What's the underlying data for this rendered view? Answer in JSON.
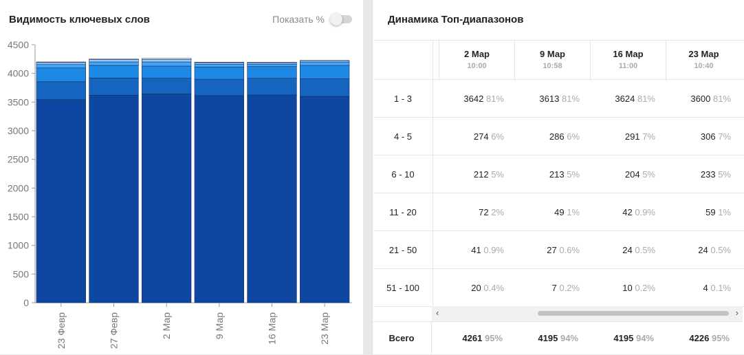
{
  "left": {
    "title": "Видимость ключевых слов",
    "toggle_label": "Показать %"
  },
  "chart_data": {
    "type": "bar",
    "stacked": true,
    "title": "Видимость ключевых слов",
    "categories": [
      "23 Февр",
      "27 Февр",
      "2 Мар",
      "9 Мар",
      "16 Мар",
      "23 Мар"
    ],
    "ylim": [
      0,
      4500
    ],
    "yticks": [
      0,
      500,
      1000,
      1500,
      2000,
      2500,
      3000,
      3500,
      4000,
      4500
    ],
    "grid": false,
    "series": [
      {
        "color": "#0d47a1",
        "values": [
          3545,
          3620,
          3642,
          3613,
          3624,
          3600
        ]
      },
      {
        "color": "#1565c0",
        "values": [
          310,
          300,
          274,
          286,
          291,
          306
        ]
      },
      {
        "color": "#1e88e5",
        "values": [
          240,
          220,
          212,
          213,
          204,
          233
        ]
      },
      {
        "color": "#42a5f5",
        "values": [
          60,
          60,
          72,
          49,
          42,
          59
        ]
      },
      {
        "color": "#90caf9",
        "values": [
          35,
          40,
          41,
          27,
          24,
          24
        ]
      },
      {
        "color": "#e3f2fd",
        "values": [
          10,
          10,
          20,
          7,
          10,
          4
        ]
      }
    ]
  },
  "right": {
    "title": "Динамика Топ-диапазонов",
    "columns": [
      {
        "date": "2 Мар",
        "time": "10:00"
      },
      {
        "date": "9 Мар",
        "time": "10:58"
      },
      {
        "date": "16 Мар",
        "time": "11:00"
      },
      {
        "date": "23 Мар",
        "time": "10:40"
      }
    ],
    "rows": [
      {
        "label": "1 - 3",
        "cells": [
          {
            "v": "3642",
            "p": "81%"
          },
          {
            "v": "3613",
            "p": "81%"
          },
          {
            "v": "3624",
            "p": "81%"
          },
          {
            "v": "3600",
            "p": "81%"
          }
        ]
      },
      {
        "label": "4 - 5",
        "cells": [
          {
            "v": "274",
            "p": "6%"
          },
          {
            "v": "286",
            "p": "6%"
          },
          {
            "v": "291",
            "p": "7%"
          },
          {
            "v": "306",
            "p": "7%"
          }
        ]
      },
      {
        "label": "6 - 10",
        "cells": [
          {
            "v": "212",
            "p": "5%"
          },
          {
            "v": "213",
            "p": "5%"
          },
          {
            "v": "204",
            "p": "5%"
          },
          {
            "v": "233",
            "p": "5%"
          }
        ]
      },
      {
        "label": "11 - 20",
        "cells": [
          {
            "v": "72",
            "p": "2%"
          },
          {
            "v": "49",
            "p": "1%"
          },
          {
            "v": "42",
            "p": "0.9%"
          },
          {
            "v": "59",
            "p": "1%"
          }
        ]
      },
      {
        "label": "21 - 50",
        "cells": [
          {
            "v": "41",
            "p": "0.9%"
          },
          {
            "v": "27",
            "p": "0.6%"
          },
          {
            "v": "24",
            "p": "0.5%"
          },
          {
            "v": "24",
            "p": "0.5%"
          }
        ]
      },
      {
        "label": "51 - 100",
        "cells": [
          {
            "v": "20",
            "p": "0.4%"
          },
          {
            "v": "7",
            "p": "0.2%"
          },
          {
            "v": "10",
            "p": "0.2%"
          },
          {
            "v": "4",
            "p": "0.1%"
          }
        ]
      }
    ],
    "total": {
      "label": "Всего",
      "cells": [
        {
          "v": "4261",
          "p": "95%"
        },
        {
          "v": "4195",
          "p": "94%"
        },
        {
          "v": "4195",
          "p": "94%"
        },
        {
          "v": "4226",
          "p": "95%"
        }
      ]
    },
    "scroll_left_arrow": "‹",
    "scroll_right_arrow": "›"
  }
}
